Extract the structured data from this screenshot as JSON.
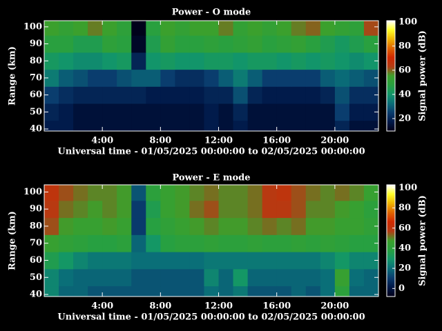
{
  "chart_data": [
    {
      "type": "heatmap",
      "title": "Power - O mode",
      "x_label": "Universal time - 01/05/2025 00:00:00 to 02/05/2025 00:00:00",
      "y_label": "Range (km)",
      "colorbar_label": "Signal power (dB)",
      "xlim": [
        0,
        23
      ],
      "ylim": [
        38.8,
        103.6
      ],
      "zlim": [
        9.7,
        101
      ],
      "xticks": [
        {
          "value": 4,
          "label": "4:00"
        },
        {
          "value": 8,
          "label": "8:00"
        },
        {
          "value": 12,
          "label": "12:00"
        },
        {
          "value": 16,
          "label": "16:00"
        },
        {
          "value": 20,
          "label": "20:00"
        }
      ],
      "yticks": [
        40,
        50,
        60,
        70,
        80,
        90,
        100
      ],
      "zticks": [
        20,
        40,
        60,
        80,
        100
      ],
      "colormap": [
        "#000018",
        "#001848",
        "#0a3c6e",
        "#0a6e78",
        "#12966a",
        "#28a040",
        "#3ca02c",
        "#b43c14",
        "#d02800",
        "#e06400",
        "#f0b400",
        "#ffff28",
        "#ffffff"
      ],
      "x_bins": [
        0,
        1,
        2,
        3,
        4,
        5,
        6,
        7,
        8,
        9,
        10,
        11,
        12,
        13,
        14,
        15,
        16,
        17,
        18,
        19,
        20,
        21,
        22,
        23
      ],
      "y_bins": [
        38.8,
        45,
        55,
        65,
        75,
        85,
        95,
        103.6
      ],
      "z": [
        [
          18,
          18,
          15,
          15,
          15,
          15,
          15,
          15,
          15,
          15,
          15,
          18,
          15,
          18,
          15,
          15,
          15,
          15,
          15,
          15,
          20,
          15,
          15
        ],
        [
          20,
          18,
          15,
          15,
          15,
          15,
          15,
          15,
          15,
          15,
          15,
          18,
          15,
          20,
          15,
          15,
          15,
          15,
          15,
          15,
          25,
          18,
          18
        ],
        [
          25,
          22,
          20,
          20,
          20,
          20,
          20,
          18,
          18,
          18,
          18,
          20,
          20,
          28,
          20,
          18,
          18,
          18,
          18,
          20,
          28,
          22,
          22
        ],
        [
          35,
          30,
          28,
          25,
          25,
          28,
          30,
          30,
          25,
          22,
          22,
          25,
          30,
          35,
          30,
          25,
          25,
          25,
          25,
          30,
          32,
          30,
          28
        ],
        [
          42,
          40,
          38,
          38,
          40,
          42,
          20,
          40,
          42,
          40,
          40,
          42,
          42,
          40,
          42,
          42,
          40,
          42,
          40,
          42,
          40,
          38,
          40
        ],
        [
          48,
          48,
          45,
          45,
          50,
          48,
          12,
          45,
          52,
          48,
          48,
          50,
          48,
          50,
          52,
          48,
          50,
          52,
          48,
          45,
          42,
          45,
          48
        ],
        [
          55,
          52,
          55,
          58,
          55,
          50,
          10,
          48,
          55,
          52,
          55,
          55,
          58,
          52,
          55,
          52,
          55,
          58,
          60,
          55,
          52,
          50,
          62
        ]
      ]
    },
    {
      "type": "heatmap",
      "title": "Power - E mode",
      "x_label": "Universal time - 01/05/2025 00:00:00 to 02/05/2025 00:00:00",
      "y_label": "Range (km)",
      "colorbar_label": "Signal power (dB)",
      "xlim": [
        0,
        23
      ],
      "ylim": [
        38.8,
        104.2
      ],
      "zlim": [
        -8,
        103
      ],
      "xticks": [
        {
          "value": 4,
          "label": "4:00"
        },
        {
          "value": 8,
          "label": "8:00"
        },
        {
          "value": 12,
          "label": "12:00"
        },
        {
          "value": 16,
          "label": "16:00"
        },
        {
          "value": 20,
          "label": "20:00"
        }
      ],
      "yticks": [
        40,
        50,
        60,
        70,
        80,
        90,
        100
      ],
      "zticks": [
        0,
        20,
        40,
        60,
        80,
        100
      ],
      "colormap": [
        "#000018",
        "#001848",
        "#0a3c6e",
        "#0a6e78",
        "#12966a",
        "#28a040",
        "#3ca02c",
        "#b43c14",
        "#d02800",
        "#e06400",
        "#f0b400",
        "#ffff28",
        "#ffffff"
      ],
      "x_bins": [
        0,
        1,
        2,
        3,
        4,
        5,
        6,
        7,
        8,
        9,
        10,
        11,
        12,
        13,
        14,
        15,
        16,
        17,
        18,
        19,
        20,
        21,
        22,
        23
      ],
      "y_bins": [
        38.8,
        45,
        55,
        65,
        75,
        85,
        95,
        104.2
      ],
      "z": [
        [
          25,
          18,
          18,
          15,
          15,
          15,
          15,
          15,
          15,
          15,
          15,
          20,
          18,
          22,
          15,
          15,
          15,
          18,
          15,
          20,
          40,
          18,
          18
        ],
        [
          25,
          20,
          18,
          18,
          18,
          18,
          15,
          15,
          15,
          15,
          15,
          25,
          18,
          30,
          18,
          18,
          18,
          18,
          18,
          20,
          45,
          20,
          18
        ],
        [
          35,
          30,
          25,
          22,
          22,
          22,
          20,
          20,
          20,
          20,
          20,
          22,
          22,
          22,
          22,
          22,
          22,
          22,
          22,
          25,
          30,
          25,
          25
        ],
        [
          45,
          42,
          40,
          38,
          38,
          40,
          18,
          30,
          38,
          40,
          40,
          42,
          40,
          40,
          42,
          40,
          40,
          42,
          40,
          42,
          40,
          38,
          38
        ],
        [
          55,
          48,
          45,
          45,
          48,
          45,
          10,
          38,
          42,
          45,
          48,
          50,
          48,
          48,
          50,
          52,
          50,
          52,
          48,
          48,
          45,
          45,
          42
        ],
        [
          58,
          52,
          50,
          48,
          50,
          48,
          10,
          35,
          45,
          48,
          52,
          55,
          50,
          50,
          52,
          58,
          58,
          55,
          50,
          50,
          48,
          45,
          40
        ],
        [
          60,
          55,
          52,
          50,
          50,
          48,
          15,
          40,
          45,
          48,
          50,
          52,
          50,
          50,
          52,
          58,
          60,
          55,
          52,
          50,
          52,
          50,
          45
        ]
      ]
    }
  ]
}
